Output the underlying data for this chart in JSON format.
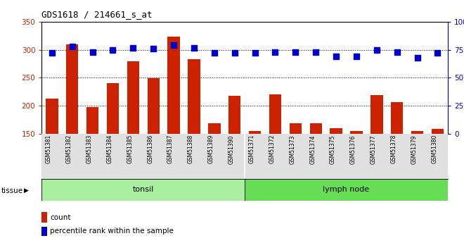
{
  "title": "GDS1618 / 214661_s_at",
  "categories": [
    "GSM51381",
    "GSM51382",
    "GSM51383",
    "GSM51384",
    "GSM51385",
    "GSM51386",
    "GSM51387",
    "GSM51388",
    "GSM51389",
    "GSM51390",
    "GSM51371",
    "GSM51372",
    "GSM51373",
    "GSM51374",
    "GSM51375",
    "GSM51376",
    "GSM51377",
    "GSM51378",
    "GSM51379",
    "GSM51380"
  ],
  "bar_values": [
    213,
    310,
    198,
    241,
    279,
    249,
    323,
    283,
    168,
    218,
    155,
    220,
    168,
    168,
    160,
    155,
    219,
    207,
    155,
    158
  ],
  "dot_values_pct": [
    72,
    78,
    73,
    75,
    77,
    76,
    79,
    77,
    72,
    72,
    72,
    73,
    73,
    73,
    69,
    69,
    75,
    73,
    68,
    72
  ],
  "bar_bottom": 150,
  "ylim_left": [
    150,
    350
  ],
  "ylim_right": [
    0,
    100
  ],
  "yticks_left": [
    150,
    200,
    250,
    300,
    350
  ],
  "yticks_right": [
    0,
    25,
    50,
    75,
    100
  ],
  "bar_color": "#cc2200",
  "dot_color": "#0000cc",
  "tonsil_color": "#aaeea0",
  "lymph_color": "#66dd55",
  "tissue_groups": [
    {
      "label": "tonsil",
      "start": 0,
      "end": 10
    },
    {
      "label": "lymph node",
      "start": 10,
      "end": 20
    }
  ],
  "legend_items": [
    {
      "label": "count",
      "color": "#cc2200"
    },
    {
      "label": "percentile rank within the sample",
      "color": "#0000cc"
    }
  ],
  "tissue_label": "tissue",
  "bg_color": "#ffffff",
  "right_axis_color": "#0000cc",
  "left_axis_color": "#cc2200",
  "bar_width": 0.6,
  "dot_size": 28,
  "n_tonsil": 10,
  "n_total": 20
}
